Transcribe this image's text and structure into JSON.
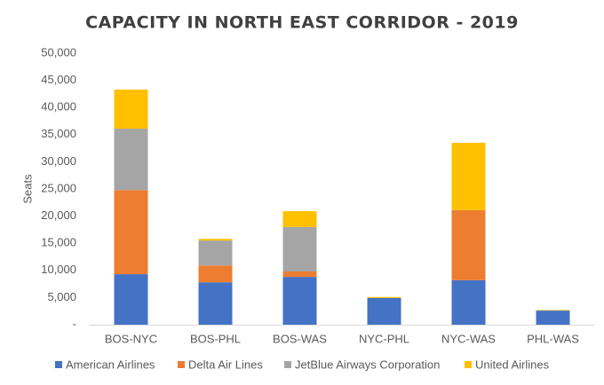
{
  "chart_data": {
    "type": "stacked_bar",
    "title": "CAPACITY IN NORTH EAST CORRIDOR - 2019",
    "y_label": "Seats",
    "categories": [
      "BOS-NYC",
      "BOS-PHL",
      "BOS-WAS",
      "NYC-PHL",
      "NYC-WAS",
      "PHL-WAS"
    ],
    "series": [
      {
        "name": "American Airlines",
        "color": "#4472c4",
        "values": [
          9300,
          7800,
          8800,
          4900,
          8200,
          2600
        ]
      },
      {
        "name": "Delta Air Lines",
        "color": "#ed7d31",
        "values": [
          15500,
          3100,
          1000,
          0,
          12900,
          0
        ]
      },
      {
        "name": "JetBlue Airways Corporation",
        "color": "#a5a5a5",
        "values": [
          11300,
          4600,
          8200,
          0,
          0,
          0
        ]
      },
      {
        "name": "United Airlines",
        "color": "#ffc000",
        "values": [
          7200,
          300,
          2900,
          200,
          12400,
          100
        ]
      }
    ],
    "ylim": [
      0,
      50000
    ],
    "yticks": [
      {
        "value": 0,
        "label": "-"
      },
      {
        "value": 5000,
        "label": "5,000"
      },
      {
        "value": 10000,
        "label": "10,000"
      },
      {
        "value": 15000,
        "label": "15,000"
      },
      {
        "value": 20000,
        "label": "20,000"
      },
      {
        "value": 25000,
        "label": "25,000"
      },
      {
        "value": 30000,
        "label": "30,000"
      },
      {
        "value": 35000,
        "label": "35,000"
      },
      {
        "value": 40000,
        "label": "40,000"
      },
      {
        "value": 45000,
        "label": "45,000"
      },
      {
        "value": 50000,
        "label": "50,000"
      }
    ],
    "grid": false,
    "legend": "bottom"
  }
}
